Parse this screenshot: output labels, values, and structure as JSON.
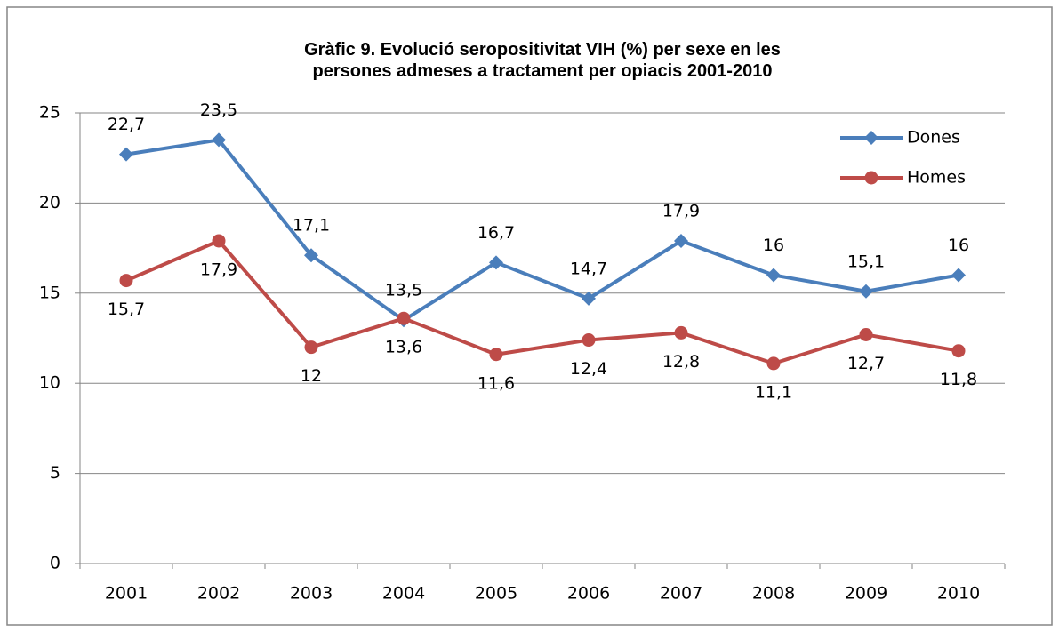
{
  "chart_data": {
    "type": "line",
    "title": "Gràfic 9. Evolució seropositivitat  VIH (%) per sexe en les persones admeses a tractament  per opiacis 2001-2010",
    "categories": [
      "2001",
      "2002",
      "2003",
      "2004",
      "2005",
      "2006",
      "2007",
      "2008",
      "2009",
      "2010"
    ],
    "series": [
      {
        "name": "Dones",
        "color": "#4a7ebb",
        "marker": "diamond",
        "values": [
          22.7,
          23.5,
          17.1,
          13.5,
          16.7,
          14.7,
          17.9,
          16,
          15.1,
          16
        ],
        "value_labels": [
          "22,7",
          "23,5",
          "17,1",
          "13,5",
          "16,7",
          "14,7",
          "17,9",
          "16",
          "15,1",
          "16"
        ]
      },
      {
        "name": "Homes",
        "color": "#be4b48",
        "marker": "circle",
        "values": [
          15.7,
          17.9,
          12,
          13.6,
          11.6,
          12.4,
          12.8,
          11.1,
          12.7,
          11.8
        ],
        "value_labels": [
          "15,7",
          "17,9",
          "12",
          "13,6",
          "11,6",
          "12,4",
          "12,8",
          "11,1",
          "12,7",
          "11,8"
        ]
      }
    ],
    "ylim": [
      0,
      25
    ],
    "yticks": [
      0,
      5,
      10,
      15,
      20,
      25
    ],
    "grid": true,
    "legend": "top-right"
  }
}
